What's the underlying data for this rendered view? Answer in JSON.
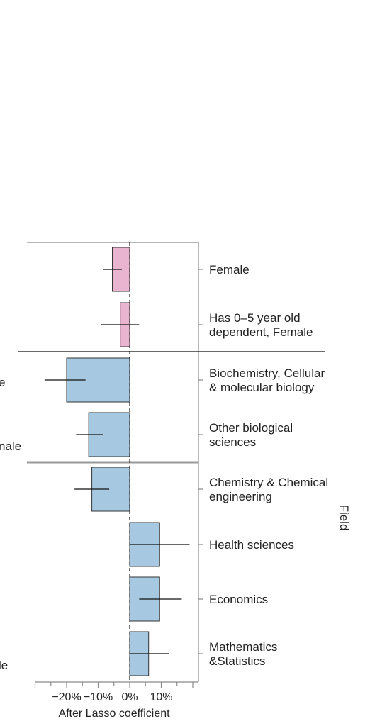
{
  "chart_data": {
    "type": "bar",
    "orientation": "horizontal",
    "xlabel": "After Lasso coefficient",
    "facet_label": "Field",
    "xlim": [
      -28,
      20
    ],
    "x_ticks": [
      {
        "value": -20,
        "label": "−20%"
      },
      {
        "value": -10,
        "label": "−10%"
      },
      {
        "value": 0,
        "label": "0%"
      },
      {
        "value": 10,
        "label": "10%"
      }
    ],
    "categories": [
      {
        "label": "Female",
        "value": -5.5,
        "ci": [
          -8.5,
          -2.5
        ],
        "color": "#e8b4d0",
        "group": 0
      },
      {
        "label": "Has 0–5 year old dependent, Female",
        "value": -3,
        "ci": [
          -9,
          3
        ],
        "color": "#e8b4d0",
        "group": 0
      },
      {
        "label": "Biochemistry, Cellular & molecular biology",
        "value": -20,
        "ci": [
          -27,
          -14
        ],
        "color": "#a6c8e0",
        "group": 1
      },
      {
        "label": "Other biological sciences",
        "value": -13,
        "ci": [
          -17,
          -8.5
        ],
        "color": "#a6c8e0",
        "group": 1
      },
      {
        "label": "Chemistry & Chemical engineering",
        "value": -12,
        "ci": [
          -17.5,
          -6.5
        ],
        "color": "#a6c8e0",
        "group": 2
      },
      {
        "label": "Health sciences",
        "value": 9.5,
        "ci": [
          0,
          19
        ],
        "color": "#a6c8e0",
        "group": 2
      },
      {
        "label": "Economics",
        "value": 9.5,
        "ci": [
          3,
          16.5
        ],
        "color": "#a6c8e0",
        "group": 2
      },
      {
        "label": "Mathematics &Statistics",
        "value": 6,
        "ci": [
          0,
          12.5
        ],
        "color": "#a6c8e0",
        "group": 2
      }
    ],
    "label_lines": [
      [
        "Female"
      ],
      [
        "Has 0–5 year old",
        "dependent, Female"
      ],
      [
        "Biochemistry, Cellular",
        "& molecular biology"
      ],
      [
        "Other biological",
        "sciences"
      ],
      [
        "Chemistry & Chemical",
        "engineering"
      ],
      [
        "Health sciences"
      ],
      [
        "Economics"
      ],
      [
        "Mathematics",
        "&Statistics"
      ]
    ]
  },
  "cutoff_labels": [
    "e",
    "nale",
    "le"
  ],
  "colors": {
    "female": "#e8b4d0",
    "field": "#a6c8e0",
    "frame": "#888888",
    "text": "#222222"
  }
}
